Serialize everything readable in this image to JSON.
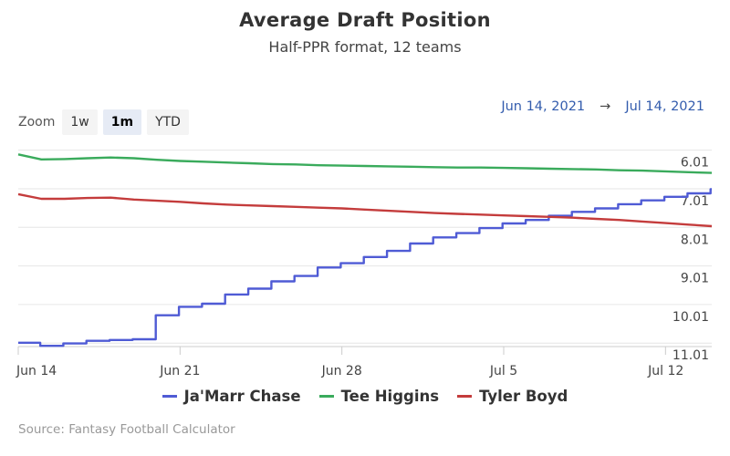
{
  "title": "Average Draft Position",
  "subtitle": "Half-PPR format, 12 teams",
  "zoom": {
    "label": "Zoom",
    "buttons": [
      "1w",
      "1m",
      "YTD"
    ],
    "active": "1m"
  },
  "range": {
    "from": "Jun 14, 2021",
    "arrow": "→",
    "to": "Jul 14, 2021"
  },
  "source": "Source: Fantasy Football Calculator",
  "chart_data": {
    "type": "line",
    "x_ticks": [
      "Jun 14",
      "Jun 21",
      "Jun 28",
      "Jul 5",
      "Jul 12"
    ],
    "y_ticks": [
      "6.01",
      "7.01",
      "8.01",
      "9.01",
      "10.01",
      "11.01"
    ],
    "y_tick_values": [
      6.01,
      7.01,
      8.01,
      9.01,
      10.01,
      11.01
    ],
    "ylim": [
      5.9,
      11.1
    ],
    "y_reversed": true,
    "x_start": "2021-06-14",
    "x_end": "2021-07-14",
    "grid": true,
    "legend": "bottom",
    "series": [
      {
        "name": "Ja'Marr Chase",
        "color": "#4f5bd5",
        "step": true,
        "points": [
          [
            "2021-06-14",
            11.0
          ],
          [
            "2021-06-15",
            11.08
          ],
          [
            "2021-06-16",
            11.02
          ],
          [
            "2021-06-17",
            10.95
          ],
          [
            "2021-06-18",
            10.93
          ],
          [
            "2021-06-19",
            10.91
          ],
          [
            "2021-06-20",
            10.29
          ],
          [
            "2021-06-21",
            10.07
          ],
          [
            "2021-06-22",
            9.99
          ],
          [
            "2021-06-23",
            9.75
          ],
          [
            "2021-06-24",
            9.6
          ],
          [
            "2021-06-25",
            9.41
          ],
          [
            "2021-06-26",
            9.27
          ],
          [
            "2021-06-27",
            9.05
          ],
          [
            "2021-06-28",
            8.94
          ],
          [
            "2021-06-29",
            8.78
          ],
          [
            "2021-06-30",
            8.62
          ],
          [
            "2021-07-01",
            8.43
          ],
          [
            "2021-07-02",
            8.27
          ],
          [
            "2021-07-03",
            8.16
          ],
          [
            "2021-07-04",
            8.03
          ],
          [
            "2021-07-05",
            7.91
          ],
          [
            "2021-07-06",
            7.82
          ],
          [
            "2021-07-07",
            7.71
          ],
          [
            "2021-07-08",
            7.61
          ],
          [
            "2021-07-09",
            7.52
          ],
          [
            "2021-07-10",
            7.41
          ],
          [
            "2021-07-11",
            7.31
          ],
          [
            "2021-07-12",
            7.22
          ],
          [
            "2021-07-13",
            7.13
          ],
          [
            "2021-07-14",
            7.02
          ]
        ]
      },
      {
        "name": "Tee Higgins",
        "color": "#3aab5c",
        "step": false,
        "points": [
          [
            "2021-06-14",
            6.12
          ],
          [
            "2021-06-15",
            6.25
          ],
          [
            "2021-06-16",
            6.24
          ],
          [
            "2021-06-17",
            6.22
          ],
          [
            "2021-06-18",
            6.2
          ],
          [
            "2021-06-19",
            6.22
          ],
          [
            "2021-06-20",
            6.26
          ],
          [
            "2021-06-21",
            6.29
          ],
          [
            "2021-06-22",
            6.31
          ],
          [
            "2021-06-23",
            6.33
          ],
          [
            "2021-06-24",
            6.35
          ],
          [
            "2021-06-25",
            6.37
          ],
          [
            "2021-06-26",
            6.38
          ],
          [
            "2021-06-27",
            6.4
          ],
          [
            "2021-06-28",
            6.41
          ],
          [
            "2021-06-29",
            6.42
          ],
          [
            "2021-06-30",
            6.43
          ],
          [
            "2021-07-01",
            6.44
          ],
          [
            "2021-07-02",
            6.45
          ],
          [
            "2021-07-03",
            6.46
          ],
          [
            "2021-07-04",
            6.46
          ],
          [
            "2021-07-05",
            6.47
          ],
          [
            "2021-07-06",
            6.48
          ],
          [
            "2021-07-07",
            6.49
          ],
          [
            "2021-07-08",
            6.5
          ],
          [
            "2021-07-09",
            6.51
          ],
          [
            "2021-07-10",
            6.53
          ],
          [
            "2021-07-11",
            6.54
          ],
          [
            "2021-07-12",
            6.56
          ],
          [
            "2021-07-13",
            6.58
          ],
          [
            "2021-07-14",
            6.6
          ]
        ]
      },
      {
        "name": "Tyler Boyd",
        "color": "#c43c3c",
        "step": false,
        "points": [
          [
            "2021-06-14",
            7.15
          ],
          [
            "2021-06-15",
            7.27
          ],
          [
            "2021-06-16",
            7.27
          ],
          [
            "2021-06-17",
            7.25
          ],
          [
            "2021-06-18",
            7.24
          ],
          [
            "2021-06-19",
            7.29
          ],
          [
            "2021-06-20",
            7.32
          ],
          [
            "2021-06-21",
            7.35
          ],
          [
            "2021-06-22",
            7.39
          ],
          [
            "2021-06-23",
            7.42
          ],
          [
            "2021-06-24",
            7.44
          ],
          [
            "2021-06-25",
            7.46
          ],
          [
            "2021-06-26",
            7.48
          ],
          [
            "2021-06-27",
            7.5
          ],
          [
            "2021-06-28",
            7.52
          ],
          [
            "2021-06-29",
            7.55
          ],
          [
            "2021-06-30",
            7.58
          ],
          [
            "2021-07-01",
            7.61
          ],
          [
            "2021-07-02",
            7.64
          ],
          [
            "2021-07-03",
            7.66
          ],
          [
            "2021-07-04",
            7.68
          ],
          [
            "2021-07-05",
            7.7
          ],
          [
            "2021-07-06",
            7.72
          ],
          [
            "2021-07-07",
            7.74
          ],
          [
            "2021-07-08",
            7.76
          ],
          [
            "2021-07-09",
            7.79
          ],
          [
            "2021-07-10",
            7.82
          ],
          [
            "2021-07-11",
            7.86
          ],
          [
            "2021-07-12",
            7.9
          ],
          [
            "2021-07-13",
            7.94
          ],
          [
            "2021-07-14",
            7.98
          ]
        ]
      }
    ]
  }
}
